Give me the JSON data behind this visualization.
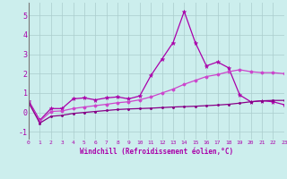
{
  "xlabel": "Windchill (Refroidissement éolien,°C)",
  "background_color": "#cceeed",
  "grid_color": "#aacccc",
  "line_color1": "#aa00aa",
  "line_color2": "#cc44cc",
  "line_color3": "#880088",
  "x": [
    0,
    1,
    2,
    3,
    4,
    5,
    6,
    7,
    8,
    9,
    10,
    11,
    12,
    13,
    14,
    15,
    16,
    17,
    18,
    19,
    20,
    21,
    22,
    23
  ],
  "ylim": [
    -1.4,
    5.7
  ],
  "xlim": [
    0,
    23
  ],
  "yticks": [
    -1,
    0,
    1,
    2,
    3,
    4,
    5
  ],
  "series1": [
    0.6,
    -0.4,
    0.2,
    0.2,
    0.7,
    0.75,
    0.65,
    0.75,
    0.8,
    0.7,
    0.85,
    1.9,
    2.75,
    3.6,
    5.2,
    3.6,
    2.4,
    2.6,
    2.3,
    0.9,
    0.55,
    0.6,
    0.55,
    0.4
  ],
  "series2": [
    0.55,
    -0.45,
    0.05,
    0.08,
    0.2,
    0.28,
    0.35,
    0.42,
    0.5,
    0.55,
    0.65,
    0.8,
    1.0,
    1.2,
    1.45,
    1.65,
    1.85,
    1.95,
    2.1,
    2.2,
    2.1,
    2.05,
    2.05,
    2.0
  ],
  "series3": [
    0.5,
    -0.55,
    -0.2,
    -0.15,
    -0.05,
    0.0,
    0.05,
    0.1,
    0.15,
    0.18,
    0.2,
    0.22,
    0.25,
    0.28,
    0.3,
    0.32,
    0.35,
    0.38,
    0.42,
    0.48,
    0.55,
    0.6,
    0.62,
    0.62
  ]
}
